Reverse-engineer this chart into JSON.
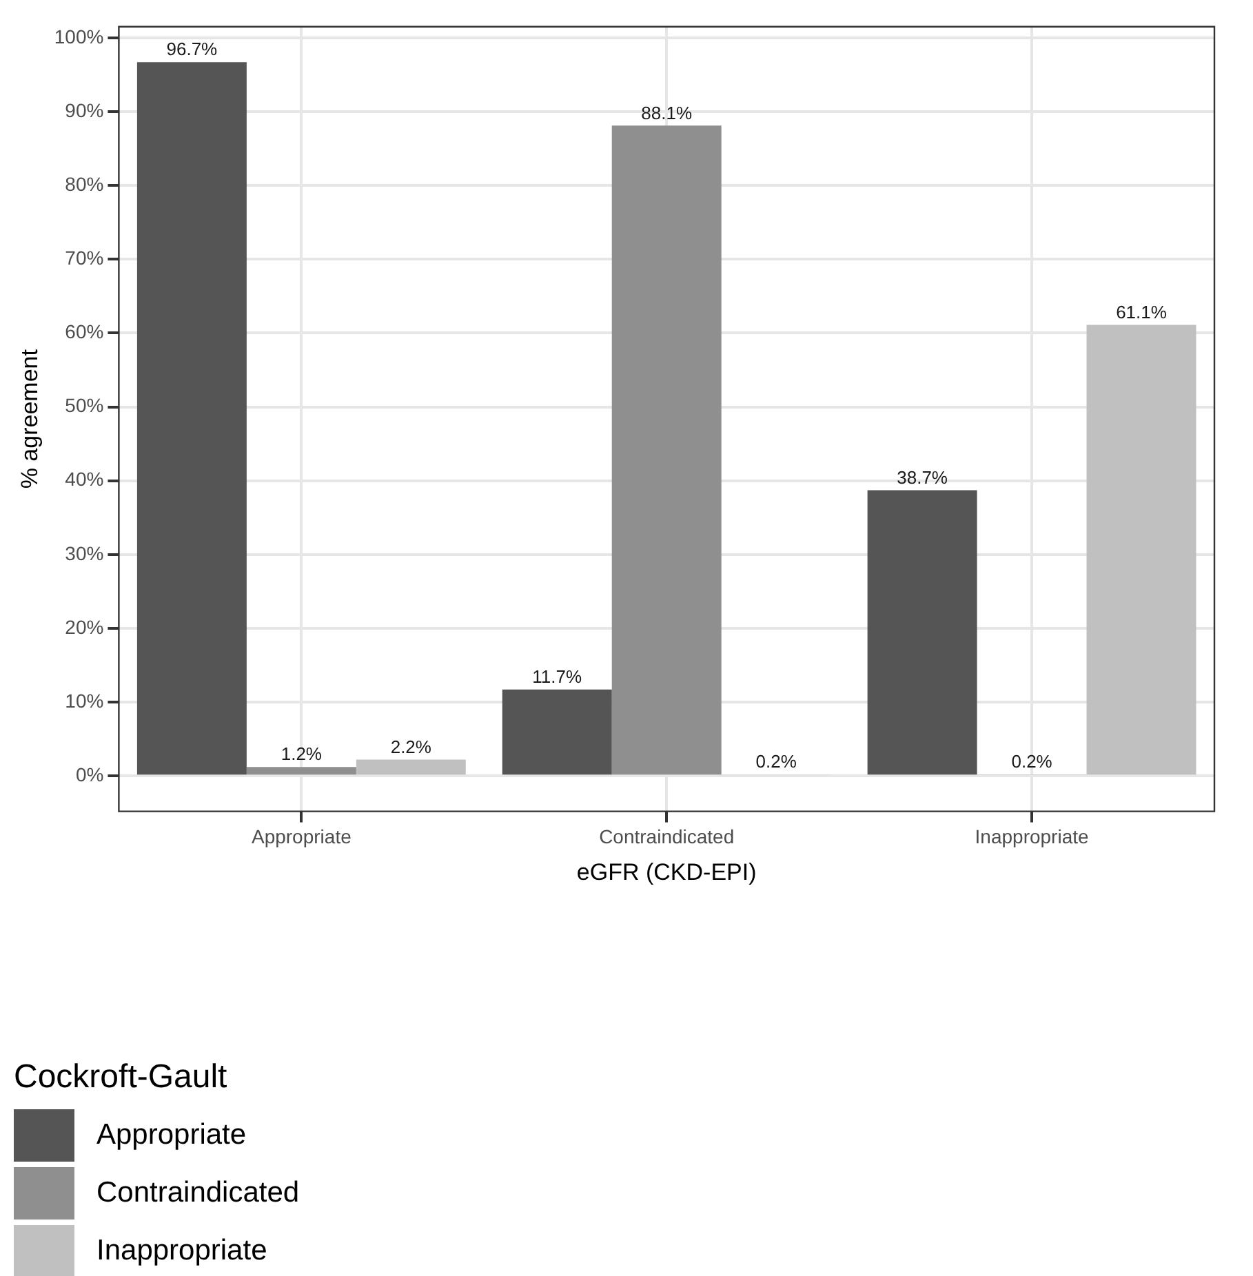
{
  "chart_data": {
    "type": "bar",
    "xlabel": "eGFR (CKD-EPI)",
    "ylabel": "% agreement",
    "legend_title": "Cockroft-Gault",
    "categories": [
      "Appropriate",
      "Contraindicated",
      "Inappropriate"
    ],
    "series": [
      {
        "name": "Appropriate",
        "color": "#555555",
        "values": [
          96.7,
          11.7,
          38.7
        ],
        "value_labels": [
          "96.7%",
          "11.7%",
          "38.7%"
        ]
      },
      {
        "name": "Contraindicated",
        "color": "#8f8f8f",
        "values": [
          1.2,
          88.1,
          0.2
        ],
        "value_labels": [
          "1.2%",
          "88.1%",
          "0.2%"
        ]
      },
      {
        "name": "Inappropriate",
        "color": "#c0c0c0",
        "values": [
          2.2,
          0.2,
          61.1
        ],
        "value_labels": [
          "2.2%",
          "0.2%",
          "61.1%"
        ]
      }
    ],
    "ylim": [
      -4.8,
      101.5
    ],
    "yticks": [
      {
        "value": 0,
        "label": "0%"
      },
      {
        "value": 10,
        "label": "10%"
      },
      {
        "value": 20,
        "label": "20%"
      },
      {
        "value": 30,
        "label": "30%"
      },
      {
        "value": 40,
        "label": "40%"
      },
      {
        "value": 50,
        "label": "50%"
      },
      {
        "value": 60,
        "label": "60%"
      },
      {
        "value": 70,
        "label": "70%"
      },
      {
        "value": 80,
        "label": "80%"
      },
      {
        "value": 90,
        "label": "90%"
      },
      {
        "value": 100,
        "label": "100%"
      }
    ],
    "grid": true,
    "legend": "bottom left"
  }
}
